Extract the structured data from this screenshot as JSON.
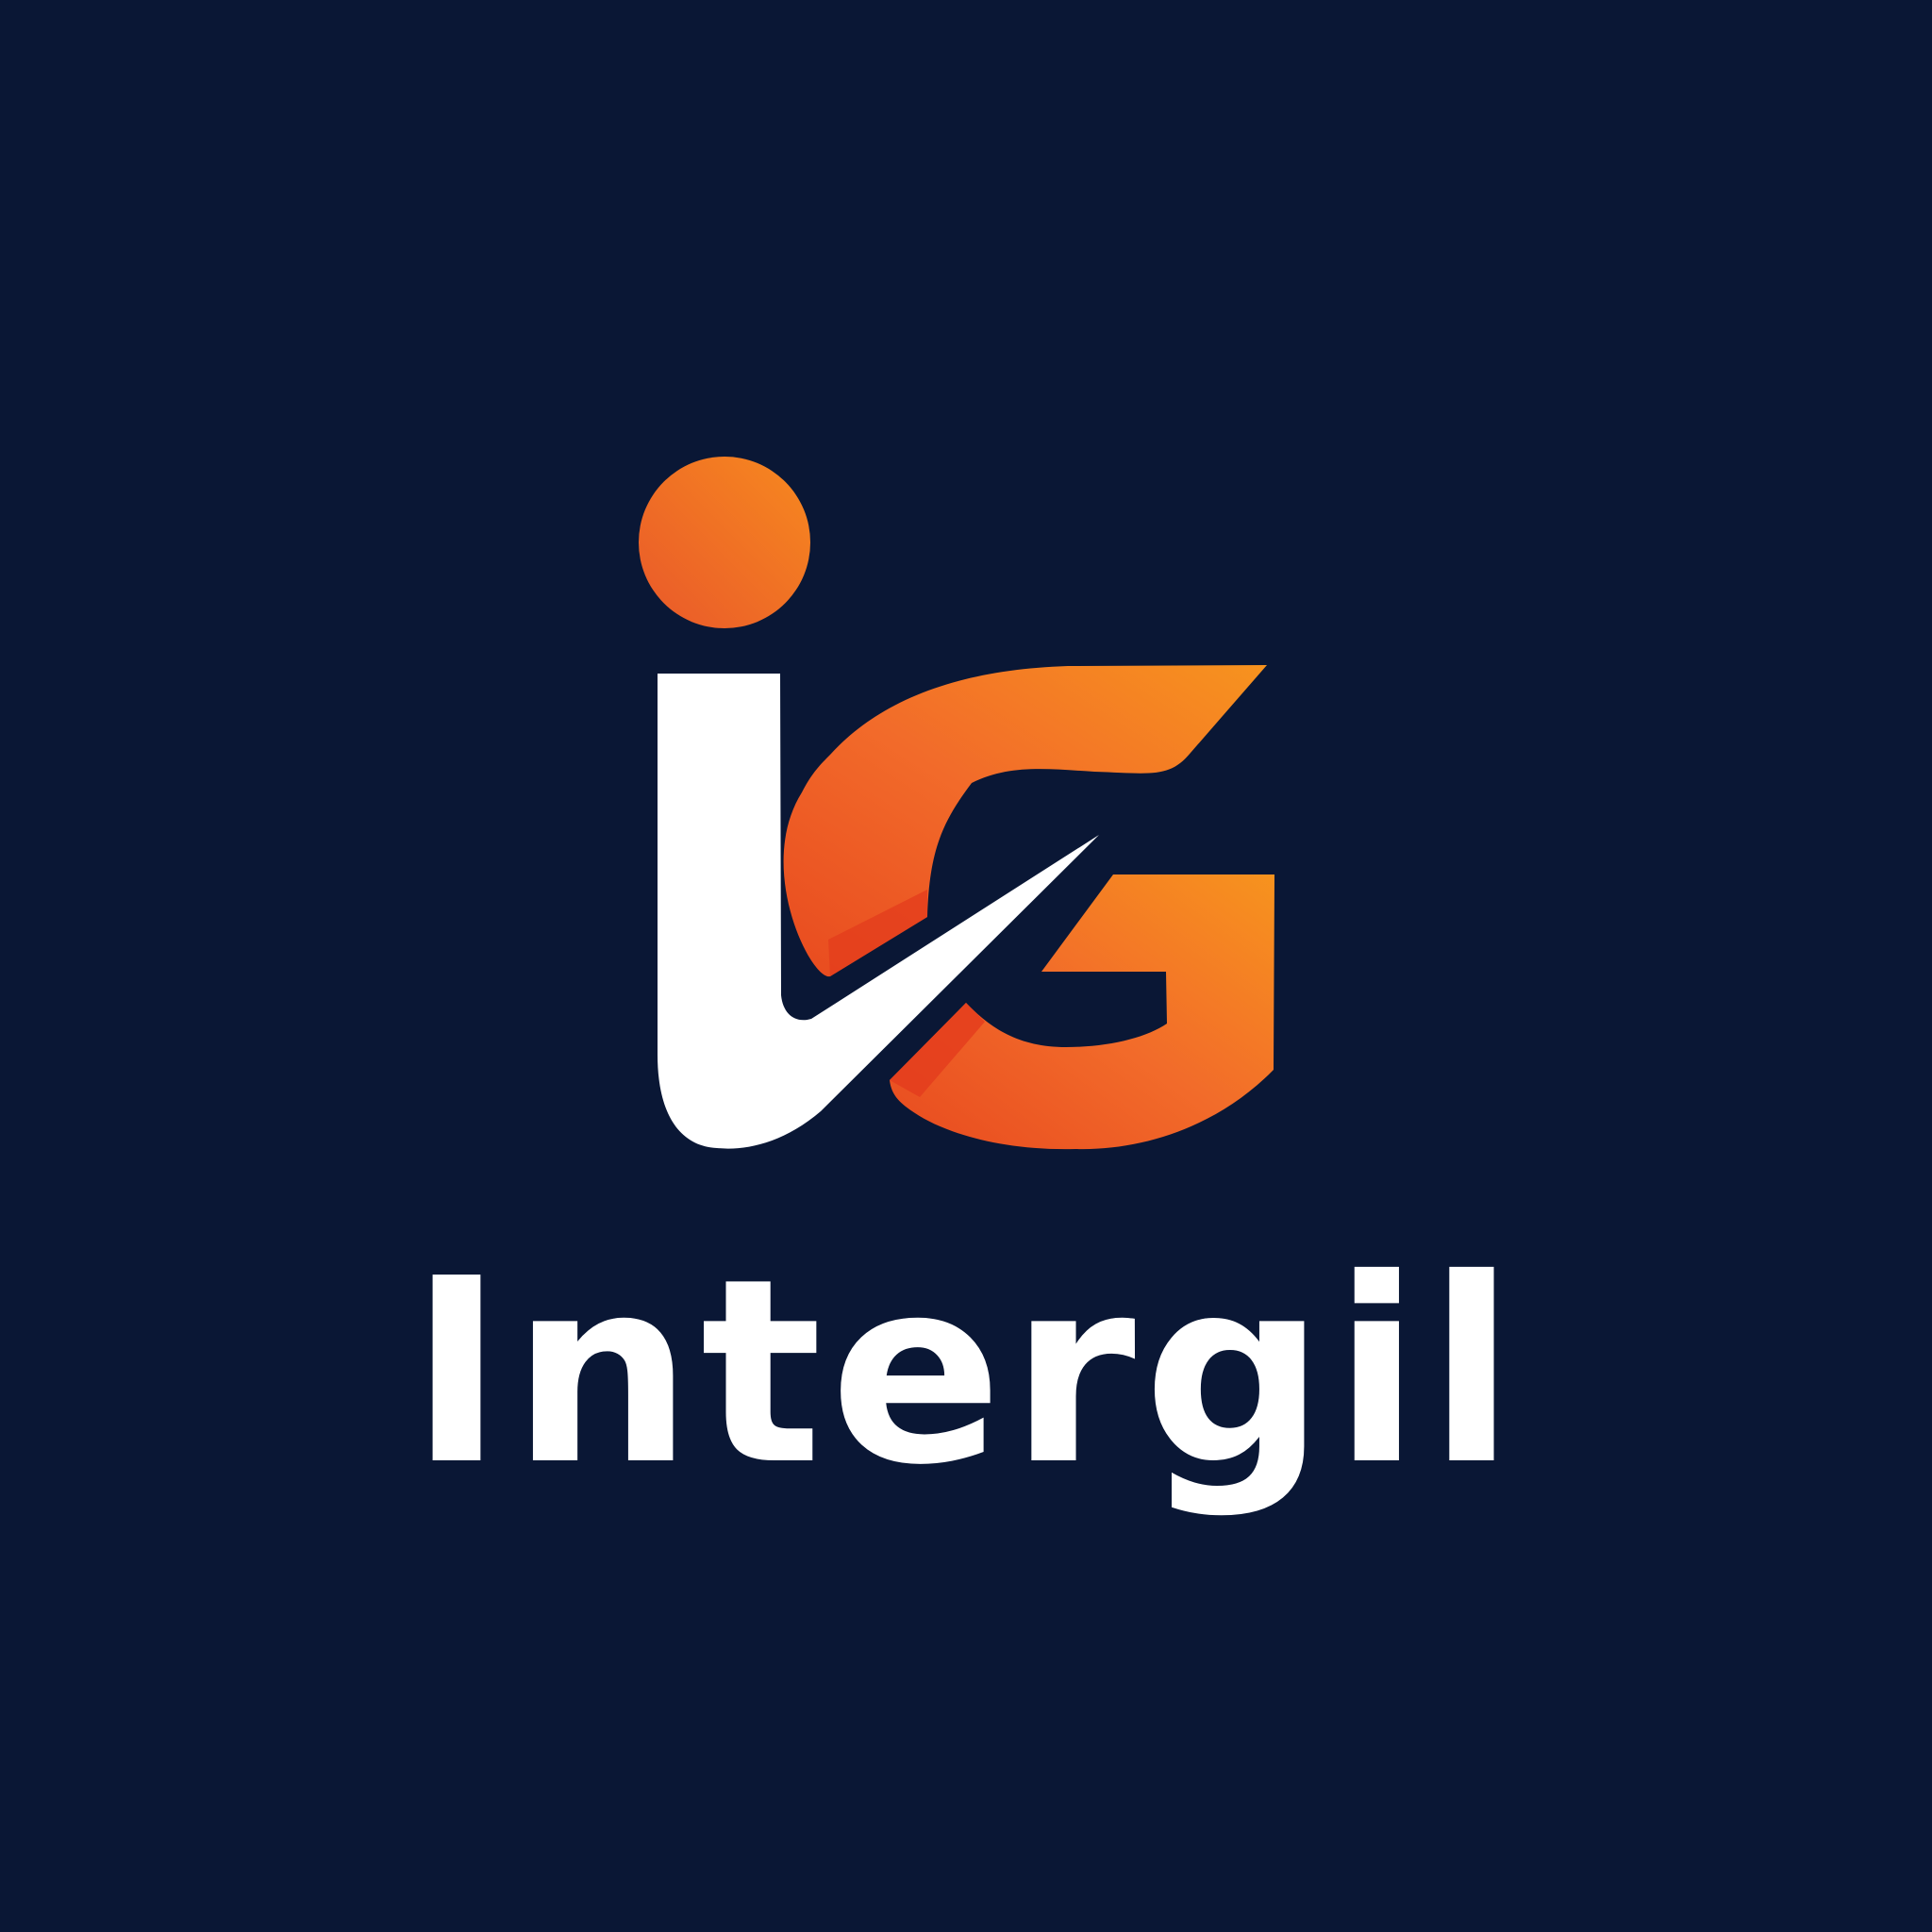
{
  "brand": {
    "name": "Intergil",
    "monogram": "iG",
    "colors": {
      "background": "#0a1735",
      "orange_light": "#f7931e",
      "orange_mid": "#f26b2a",
      "orange_deep": "#e84a1f",
      "white": "#ffffff"
    }
  },
  "icons": {
    "dot": "i-dot-circle",
    "stem": "i-stem-check",
    "letter": "g-arc"
  }
}
